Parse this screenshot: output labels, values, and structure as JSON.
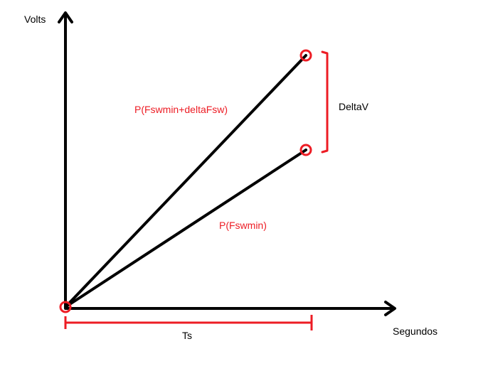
{
  "axes": {
    "y_label": "Volts",
    "x_label": "Segundos"
  },
  "lines": {
    "upper_label": "P(Fswmin+deltaFsw)",
    "lower_label": "P(Fswmin)"
  },
  "annotations": {
    "delta_label": "DeltaV",
    "period_label": "Ts"
  },
  "colors": {
    "axis": "#000000",
    "ramp": "#000000",
    "marker": "#ed1c24",
    "annotation": "#ed1c24",
    "text": "#000000"
  }
}
